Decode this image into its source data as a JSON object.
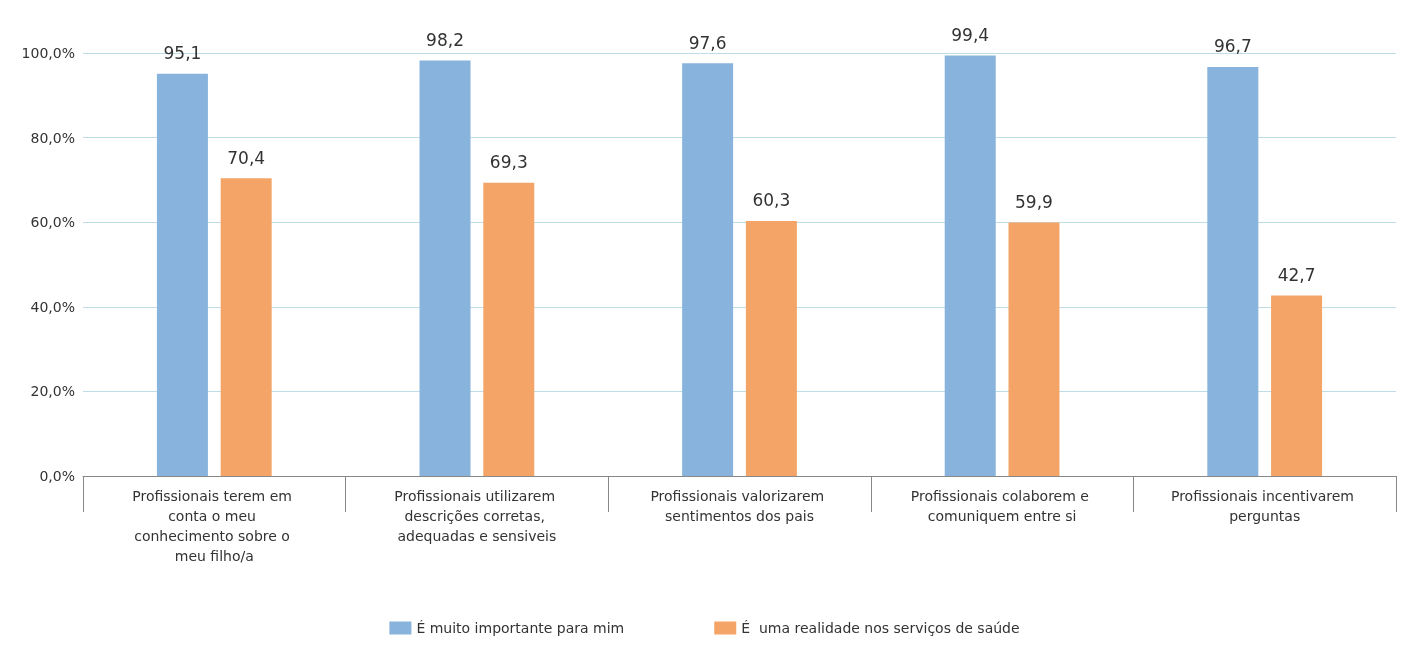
{
  "chart_data": {
    "type": "bar",
    "categories": [
      "Profissionais terem em conta o meu conhecimento sobre o meu filho/a",
      "Profissionais utilizarem descrições corretas, adequadas e sensiveis",
      "Profissionais valorizarem sentimentos dos pais",
      "Profissionais colaborem e comuniquem entre si",
      "Profissionais incentivarem perguntas"
    ],
    "series": [
      {
        "name": "É muito importante para mim",
        "color": "#87b3dc",
        "values": [
          95.1,
          98.2,
          97.6,
          99.4,
          96.7
        ],
        "value_labels": [
          "95,1",
          "98,2",
          "97,6",
          "99,4",
          "96,7"
        ]
      },
      {
        "name": "É  uma realidade nos serviços de saúde",
        "color": "#f4a466",
        "values": [
          70.4,
          69.3,
          60.3,
          59.9,
          42.7
        ],
        "value_labels": [
          "70,4",
          "69,3",
          "60,3",
          "59,9",
          "42,7"
        ]
      }
    ],
    "ylim": [
      0,
      100
    ],
    "yticks": [
      {
        "value": 0,
        "label": "0,0%"
      },
      {
        "value": 20,
        "label": "20,0%"
      },
      {
        "value": 40,
        "label": "40,0%"
      },
      {
        "value": 60,
        "label": "60,0%"
      },
      {
        "value": 80,
        "label": "80,0%"
      },
      {
        "value": 100,
        "label": "100,0%"
      }
    ],
    "grid": "y",
    "legend": "bottom"
  }
}
